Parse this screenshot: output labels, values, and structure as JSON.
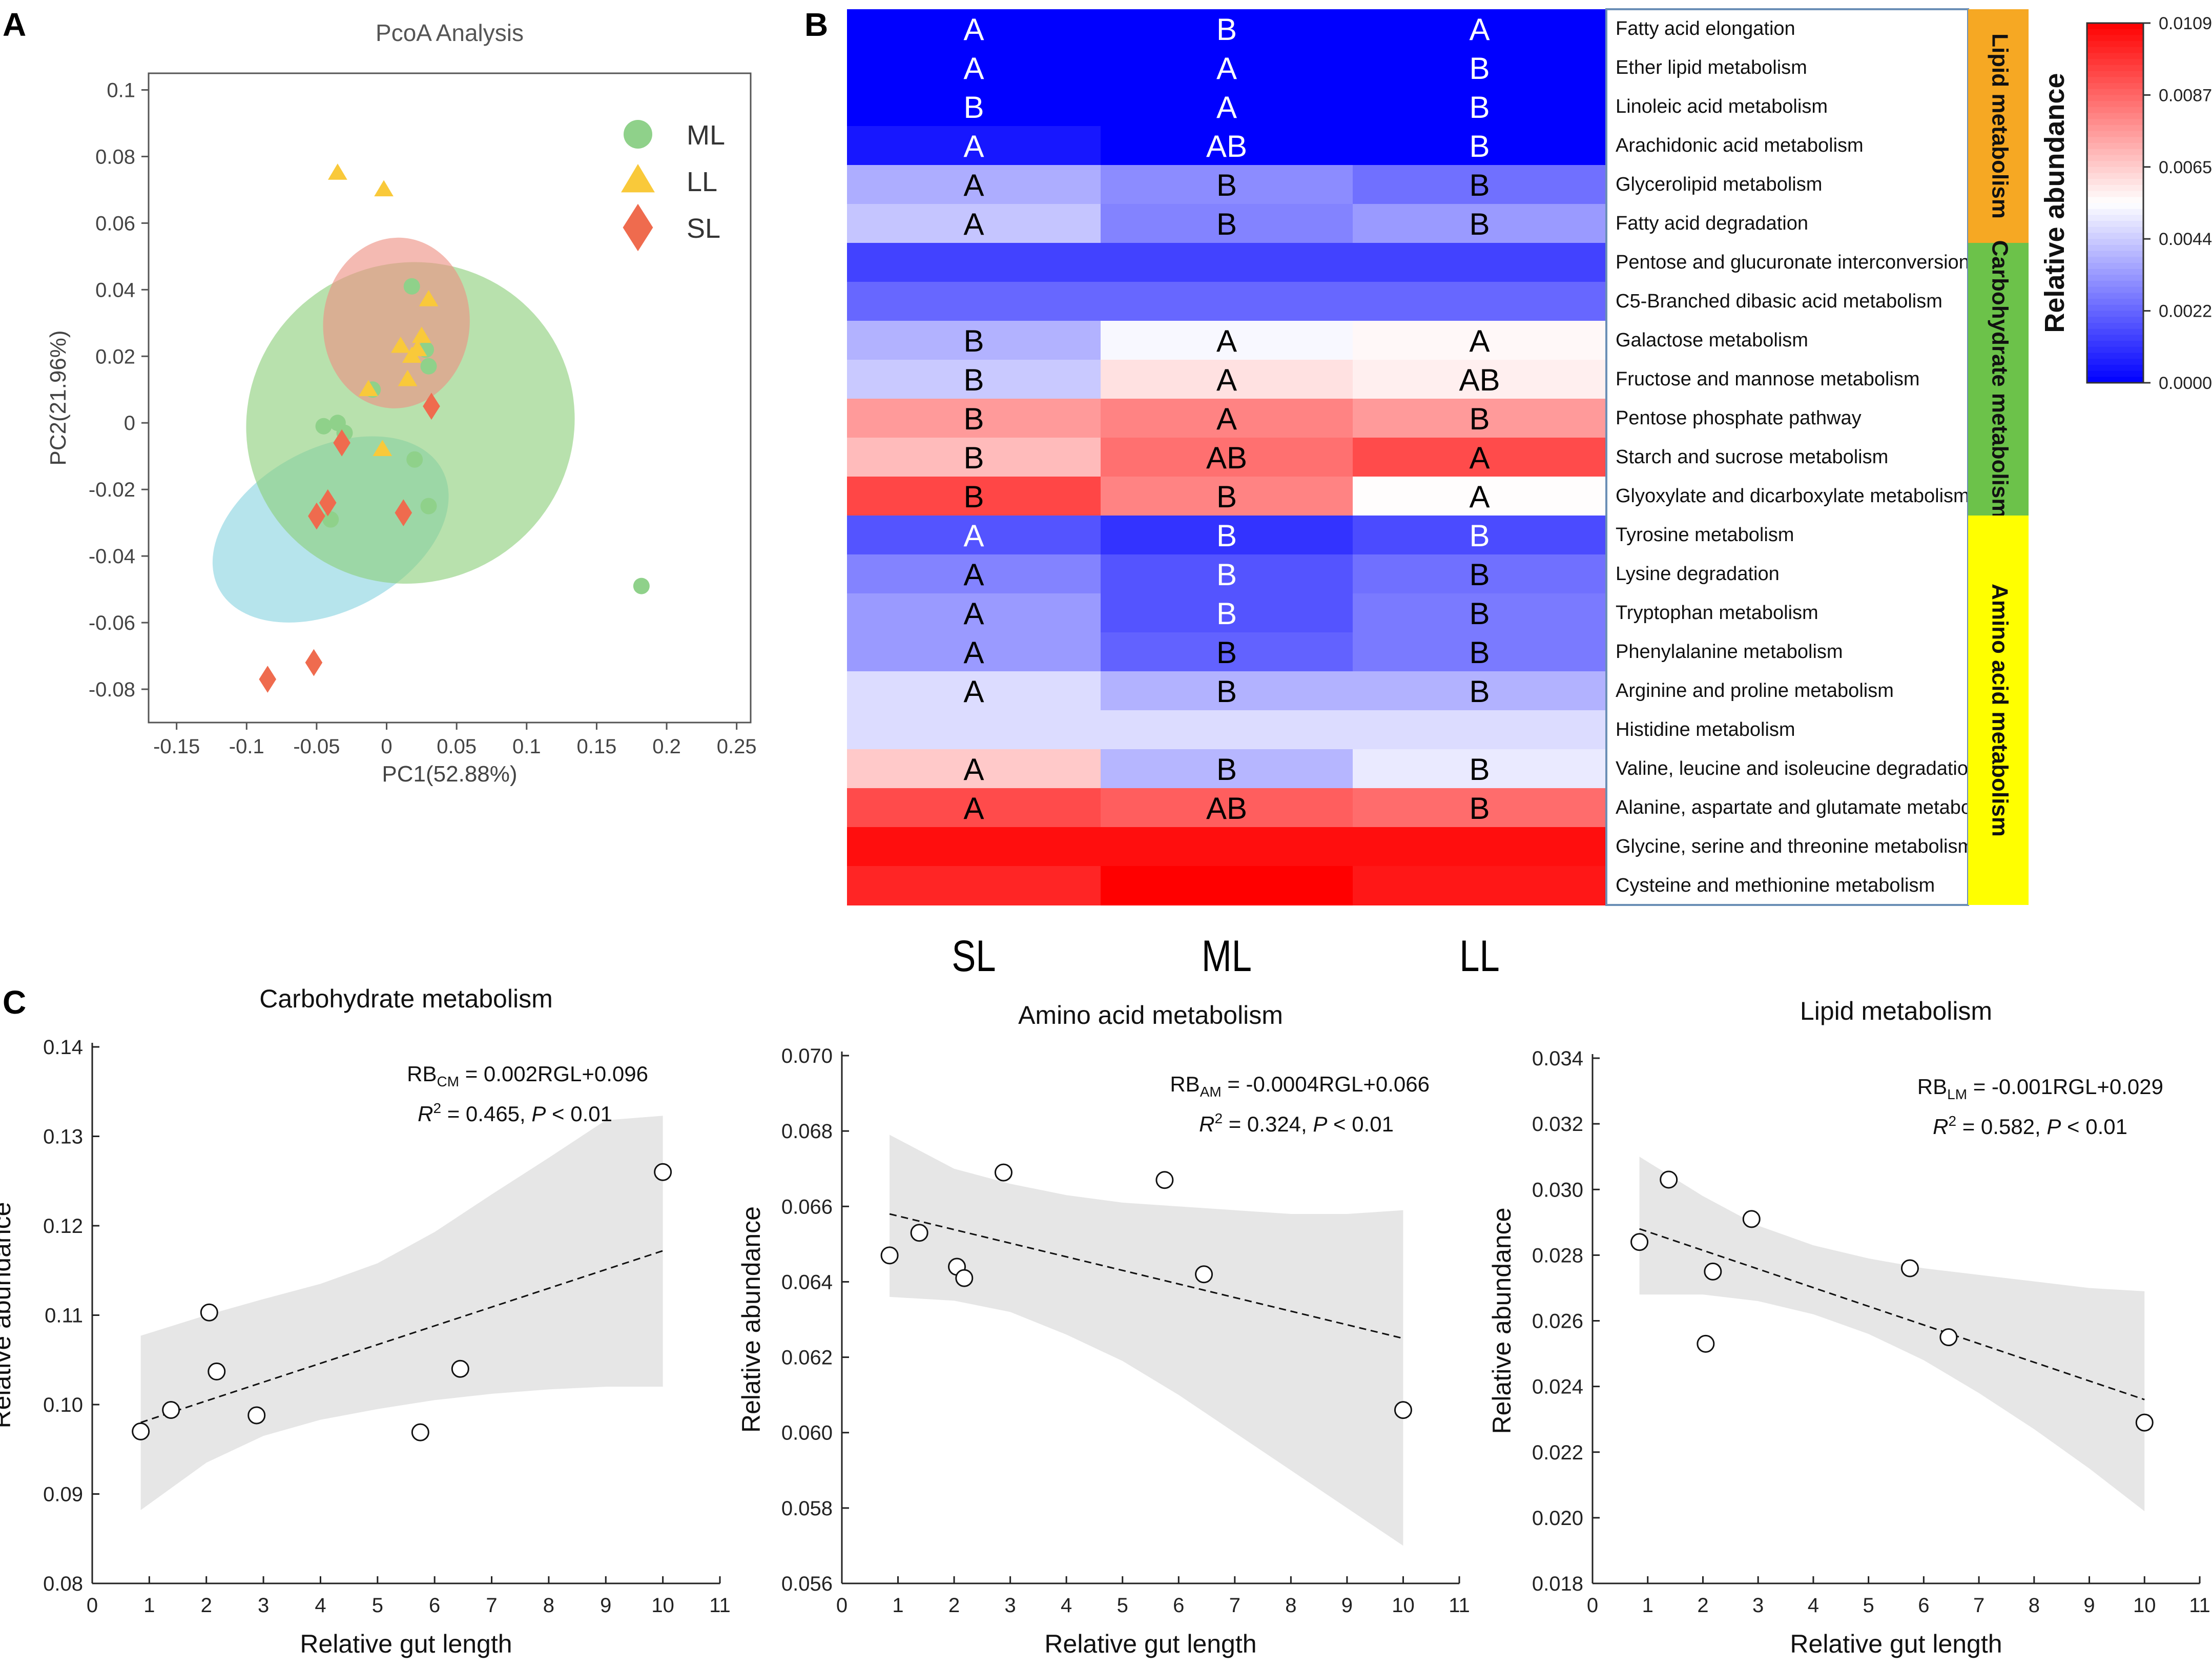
{
  "colors": {
    "ml": "#8fd18a",
    "ll": "#f9c93a",
    "sl": "#ef6b4e",
    "ellipse_ml": "#8ccf7a",
    "ellipse_ll": "#ee8f83",
    "ellipse_sl": "#89d3e0",
    "lipid_band": "#f6a823",
    "carb_band": "#6cc24a",
    "amino_band": "#ffff00",
    "heat_low": "#0000ff",
    "heat_mid": "#ffffff",
    "heat_high": "#ff0000",
    "ci_fill": "#e6e6e6"
  },
  "panels": {
    "a": "A",
    "b": "B",
    "c": "C"
  },
  "chart_data": [
    {
      "id": "pcoa",
      "type": "scatter",
      "title": "PcoA Analysis",
      "xlabel": "PC1(52.88%)",
      "ylabel": "PC2(21.96%)",
      "xlim": [
        -0.17,
        0.26
      ],
      "ylim": [
        -0.09,
        0.105
      ],
      "xticks": [
        -0.15,
        -0.1,
        -0.05,
        0,
        0.05,
        0.1,
        0.15,
        0.2,
        0.25
      ],
      "xtick_labels": [
        "-0.15",
        "-0.1",
        "-0.05",
        "0",
        "0.05",
        "0.1",
        "0.15",
        "0.2",
        "0.25"
      ],
      "yticks": [
        0.1,
        0.08,
        0.06,
        0.04,
        0.02,
        0,
        -0.02,
        -0.04,
        -0.06,
        -0.08
      ],
      "ytick_labels": [
        "0.1",
        "0.08",
        "0.06",
        "0.04",
        "0.02",
        "0",
        "-0.02",
        "-0.04",
        "-0.06",
        "-0.08"
      ],
      "legend": [
        "ML",
        "LL",
        "SL"
      ],
      "series": [
        {
          "name": "ML",
          "marker": "circle",
          "points": [
            [
              0.018,
              0.041
            ],
            [
              0.028,
              0.022
            ],
            [
              0.03,
              0.017
            ],
            [
              -0.01,
              0.01
            ],
            [
              -0.045,
              -0.001
            ],
            [
              -0.035,
              0
            ],
            [
              -0.03,
              -0.003
            ],
            [
              -0.04,
              -0.029
            ],
            [
              0.02,
              -0.011
            ],
            [
              0.03,
              -0.025
            ],
            [
              0.182,
              -0.049
            ]
          ],
          "ellipse": {
            "cx": 0.017,
            "cy": 0.0,
            "rx": 0.118,
            "ry": 0.048,
            "angle_deg": -25
          }
        },
        {
          "name": "LL",
          "marker": "triangle",
          "points": [
            [
              -0.035,
              0.075
            ],
            [
              -0.002,
              0.07
            ],
            [
              0.03,
              0.037
            ],
            [
              0.025,
              0.026
            ],
            [
              0.022,
              0.022
            ],
            [
              0.01,
              0.023
            ],
            [
              0.018,
              0.02
            ],
            [
              -0.013,
              0.01
            ],
            [
              0.015,
              0.013
            ],
            [
              -0.003,
              -0.008
            ]
          ],
          "ellipse": {
            "cx": 0.007,
            "cy": 0.03,
            "rx": 0.061,
            "ry": 0.022,
            "angle_deg": -85
          }
        },
        {
          "name": "SL",
          "marker": "diamond",
          "points": [
            [
              0.032,
              0.005
            ],
            [
              -0.032,
              -0.006
            ],
            [
              -0.042,
              -0.024
            ],
            [
              -0.05,
              -0.028
            ],
            [
              0.012,
              -0.027
            ],
            [
              -0.052,
              -0.072
            ],
            [
              -0.085,
              -0.077
            ]
          ],
          "ellipse": {
            "cx": -0.04,
            "cy": -0.032,
            "rx": 0.058,
            "ry": 0.038,
            "angle_deg": 62
          }
        }
      ]
    },
    {
      "id": "heatmap",
      "type": "heatmap",
      "columns": [
        "SL",
        "ML",
        "LL"
      ],
      "value_range": [
        0,
        0.0109
      ],
      "colorbar_ticks": [
        "0.0109",
        "0.0087",
        "0.0065",
        "0.0044",
        "0.0022",
        "0.0000"
      ],
      "colorbar_label": "Relative abundance",
      "rows": [
        {
          "pathway": "Fatty acid elongation",
          "values": [
            0.0,
            0.0,
            0.0
          ],
          "letters": [
            "A",
            "B",
            "A"
          ]
        },
        {
          "pathway": "Ether lipid metabolism",
          "values": [
            0.0,
            0.0,
            0.0
          ],
          "letters": [
            "A",
            "A",
            "B"
          ]
        },
        {
          "pathway": "Linoleic acid metabolism",
          "values": [
            0.0,
            0.0,
            0.0
          ],
          "letters": [
            "B",
            "A",
            "B"
          ]
        },
        {
          "pathway": "Arachidonic acid metabolism",
          "values": [
            0.0005,
            0.0,
            0.0
          ],
          "letters": [
            "A",
            "AB",
            "B"
          ]
        },
        {
          "pathway": "Glycerolipid metabolism",
          "values": [
            0.0037,
            0.003,
            0.0024
          ],
          "letters": [
            "A",
            "B",
            "B"
          ]
        },
        {
          "pathway": "Fatty acid degradation",
          "values": [
            0.0042,
            0.0028,
            0.0033
          ],
          "letters": [
            "A",
            "B",
            "B"
          ]
        },
        {
          "pathway": "Pentose and glucuronate interconversions",
          "values": [
            0.0014,
            0.0014,
            0.0014
          ],
          "letters": [
            "",
            "",
            ""
          ]
        },
        {
          "pathway": "C5-Branched dibasic acid metabolism",
          "values": [
            0.0022,
            0.0022,
            0.0022
          ],
          "letters": [
            "",
            "",
            ""
          ]
        },
        {
          "pathway": "Galactose metabolism",
          "values": [
            0.0038,
            0.0053,
            0.0056
          ],
          "letters": [
            "B",
            "A",
            "A"
          ]
        },
        {
          "pathway": "Fructose and mannose metabolism",
          "values": [
            0.0043,
            0.0061,
            0.0058
          ],
          "letters": [
            "B",
            "A",
            "AB"
          ]
        },
        {
          "pathway": "Pentose phosphate pathway",
          "values": [
            0.0076,
            0.0081,
            0.0076
          ],
          "letters": [
            "B",
            "A",
            "B"
          ]
        },
        {
          "pathway": "Starch and sucrose metabolism",
          "values": [
            0.0069,
            0.0085,
            0.0093
          ],
          "letters": [
            "B",
            "AB",
            "A"
          ]
        },
        {
          "pathway": "Glyoxylate and dicarboxylate metabolism",
          "values": [
            0.0094,
            0.0081,
            0.0055
          ],
          "letters": [
            "B",
            "B",
            "A"
          ]
        },
        {
          "pathway": "Tyrosine metabolism",
          "values": [
            0.0018,
            0.0011,
            0.0016
          ],
          "letters": [
            "A",
            "B",
            "B"
          ]
        },
        {
          "pathway": "Lysine degradation",
          "values": [
            0.0028,
            0.0018,
            0.0024
          ],
          "letters": [
            "A",
            "B",
            "B"
          ]
        },
        {
          "pathway": "Tryptophan metabolism",
          "values": [
            0.0033,
            0.0018,
            0.0026
          ],
          "letters": [
            "A",
            "B",
            "B"
          ]
        },
        {
          "pathway": "Phenylalanine metabolism",
          "values": [
            0.0033,
            0.0021,
            0.0026
          ],
          "letters": [
            "A",
            "B",
            "B"
          ]
        },
        {
          "pathway": "Arginine and proline metabolism",
          "values": [
            0.0047,
            0.0038,
            0.0038
          ],
          "letters": [
            "A",
            "B",
            "B"
          ]
        },
        {
          "pathway": "Histidine metabolism",
          "values": [
            0.0047,
            0.0047,
            0.0047
          ],
          "letters": [
            "",
            "",
            ""
          ]
        },
        {
          "pathway": "Valine, leucine and isoleucine degradation",
          "values": [
            0.0066,
            0.0039,
            0.005
          ],
          "letters": [
            "A",
            "B",
            "B"
          ]
        },
        {
          "pathway": "Alanine, aspartate and glutamate metabolism",
          "values": [
            0.0093,
            0.0089,
            0.0086
          ],
          "letters": [
            "A",
            "AB",
            "B"
          ]
        },
        {
          "pathway": "Glycine, serine and threonine metabolism",
          "values": [
            0.0106,
            0.0106,
            0.0106
          ],
          "letters": [
            "",
            "",
            ""
          ]
        },
        {
          "pathway": "Cysteine and methionine metabolism",
          "values": [
            0.0101,
            0.0109,
            0.0104
          ],
          "letters": [
            "",
            "",
            ""
          ]
        }
      ],
      "categories": [
        {
          "name": "Lipid metabolism",
          "row_start": 0,
          "row_end": 5,
          "color": "#f6a823"
        },
        {
          "name": "Carbohydrate metabolism",
          "row_start": 6,
          "row_end": 12,
          "color": "#6cc24a"
        },
        {
          "name": "Amino acid metabolism",
          "row_start": 13,
          "row_end": 22,
          "color": "#ffff00"
        }
      ]
    },
    {
      "id": "carb",
      "type": "scatter",
      "title": "Carbohydrate metabolism",
      "xlabel": "Relative gut length",
      "ylabel": "Relative abundance",
      "xlim": [
        0,
        11
      ],
      "ylim": [
        0.08,
        0.14
      ],
      "xticks": [
        0,
        1,
        2,
        3,
        4,
        5,
        6,
        7,
        8,
        9,
        10,
        11
      ],
      "yticks": [
        0.08,
        0.09,
        0.1,
        0.11,
        0.12,
        0.13,
        0.14
      ],
      "ytick_labels": [
        "0.08",
        "0.09",
        "0.10",
        "0.11",
        "0.12",
        "0.13",
        "0.14"
      ],
      "points": [
        [
          0.85,
          0.097
        ],
        [
          1.38,
          0.0994
        ],
        [
          2.05,
          0.1103
        ],
        [
          2.18,
          0.1037
        ],
        [
          2.88,
          0.0988
        ],
        [
          5.75,
          0.0969
        ],
        [
          6.45,
          0.104
        ],
        [
          10.0,
          0.126
        ]
      ],
      "fit": {
        "slope": 0.002,
        "intercept": 0.096,
        "x_range": [
          0.85,
          10.0
        ],
        "y_at_range": [
          0.098,
          0.1172
        ]
      },
      "ci_upper": [
        [
          0.85,
          0.1077
        ],
        [
          2,
          0.11
        ],
        [
          3,
          0.1118
        ],
        [
          4,
          0.1135
        ],
        [
          5,
          0.1158
        ],
        [
          6,
          0.1193
        ],
        [
          7,
          0.1235
        ],
        [
          8,
          0.1276
        ],
        [
          9,
          0.1318
        ],
        [
          10,
          0.1323
        ]
      ],
      "ci_lower": [
        [
          0.85,
          0.0882
        ],
        [
          2,
          0.0935
        ],
        [
          3,
          0.0965
        ],
        [
          4,
          0.0983
        ],
        [
          5,
          0.0995
        ],
        [
          6,
          0.1005
        ],
        [
          7,
          0.1012
        ],
        [
          8,
          0.1017
        ],
        [
          9,
          0.102
        ],
        [
          10,
          0.102
        ]
      ],
      "eq_prefix": "RB",
      "eq_sub": "CM",
      "eq_rest": " = 0.002RGL+0.096",
      "r2_value": " = 0.465, ",
      "p_value": " < 0.01"
    },
    {
      "id": "amino",
      "type": "scatter",
      "title": "Amino acid metabolism",
      "xlabel": "Relative gut length",
      "ylabel": "Relative abundance",
      "xlim": [
        0,
        11
      ],
      "ylim": [
        0.056,
        0.07
      ],
      "xticks": [
        0,
        1,
        2,
        3,
        4,
        5,
        6,
        7,
        8,
        9,
        10,
        11
      ],
      "yticks": [
        0.056,
        0.058,
        0.06,
        0.062,
        0.064,
        0.066,
        0.068,
        0.07
      ],
      "ytick_labels": [
        "0.056",
        "0.058",
        "0.060",
        "0.062",
        "0.064",
        "0.066",
        "0.068",
        "0.070"
      ],
      "points": [
        [
          0.85,
          0.0647
        ],
        [
          1.38,
          0.0653
        ],
        [
          2.05,
          0.0644
        ],
        [
          2.18,
          0.0641
        ],
        [
          2.88,
          0.0669
        ],
        [
          5.75,
          0.0667
        ],
        [
          6.45,
          0.0642
        ],
        [
          10.0,
          0.0606
        ]
      ],
      "fit": {
        "slope": -0.0004,
        "intercept": 0.066,
        "x_range": [
          0.85,
          10.0
        ],
        "y_at_range": [
          0.0658,
          0.0625
        ]
      },
      "ci_upper": [
        [
          0.85,
          0.0679
        ],
        [
          2,
          0.067
        ],
        [
          3,
          0.0666
        ],
        [
          4,
          0.0663
        ],
        [
          5,
          0.0661
        ],
        [
          6,
          0.066
        ],
        [
          7,
          0.0659
        ],
        [
          8,
          0.0658
        ],
        [
          9,
          0.0658
        ],
        [
          10,
          0.0659
        ]
      ],
      "ci_lower": [
        [
          0.85,
          0.0636
        ],
        [
          2,
          0.0635
        ],
        [
          3,
          0.0632
        ],
        [
          4,
          0.0626
        ],
        [
          5,
          0.0619
        ],
        [
          6,
          0.061
        ],
        [
          7,
          0.06
        ],
        [
          8,
          0.059
        ],
        [
          9,
          0.058
        ],
        [
          10,
          0.057
        ]
      ],
      "eq_prefix": "RB",
      "eq_sub": "AM",
      "eq_rest": " = -0.0004RGL+0.066",
      "r2_value": " = 0.324, ",
      "p_value": " < 0.01"
    },
    {
      "id": "lipid",
      "type": "scatter",
      "title": "Lipid metabolism",
      "xlabel": "Relative gut length",
      "ylabel": "Relative abundance",
      "xlim": [
        0,
        11
      ],
      "ylim": [
        0.018,
        0.034
      ],
      "xticks": [
        0,
        1,
        2,
        3,
        4,
        5,
        6,
        7,
        8,
        9,
        10,
        11
      ],
      "yticks": [
        0.018,
        0.02,
        0.022,
        0.024,
        0.026,
        0.028,
        0.03,
        0.032,
        0.034
      ],
      "ytick_labels": [
        "0.018",
        "0.020",
        "0.022",
        "0.024",
        "0.026",
        "0.028",
        "0.030",
        "0.032",
        "0.034"
      ],
      "points": [
        [
          0.85,
          0.0284
        ],
        [
          1.38,
          0.0303
        ],
        [
          2.05,
          0.0253
        ],
        [
          2.18,
          0.0275
        ],
        [
          2.88,
          0.0291
        ],
        [
          5.75,
          0.0276
        ],
        [
          6.45,
          0.0255
        ],
        [
          10.0,
          0.0229
        ]
      ],
      "fit": {
        "slope": -0.001,
        "intercept": 0.029,
        "x_range": [
          0.85,
          10.0
        ],
        "y_at_range": [
          0.0288,
          0.0236
        ]
      },
      "ci_upper": [
        [
          0.85,
          0.031
        ],
        [
          2,
          0.0298
        ],
        [
          3,
          0.0289
        ],
        [
          4,
          0.0283
        ],
        [
          5,
          0.0279
        ],
        [
          6,
          0.0276
        ],
        [
          7,
          0.0274
        ],
        [
          8,
          0.0272
        ],
        [
          9,
          0.027
        ],
        [
          10,
          0.0269
        ]
      ],
      "ci_lower": [
        [
          0.85,
          0.0268
        ],
        [
          2,
          0.0268
        ],
        [
          3,
          0.0266
        ],
        [
          4,
          0.0262
        ],
        [
          5,
          0.0256
        ],
        [
          6,
          0.0248
        ],
        [
          7,
          0.0238
        ],
        [
          8,
          0.0227
        ],
        [
          9,
          0.0215
        ],
        [
          10,
          0.0202
        ]
      ],
      "eq_prefix": "RB",
      "eq_sub": "LM",
      "eq_rest": " = -0.001RGL+0.029",
      "r2_value": " = 0.582, ",
      "p_value": " < 0.01"
    }
  ],
  "stat_labels": {
    "r": "R",
    "r_sup": "2",
    "p": "P"
  }
}
